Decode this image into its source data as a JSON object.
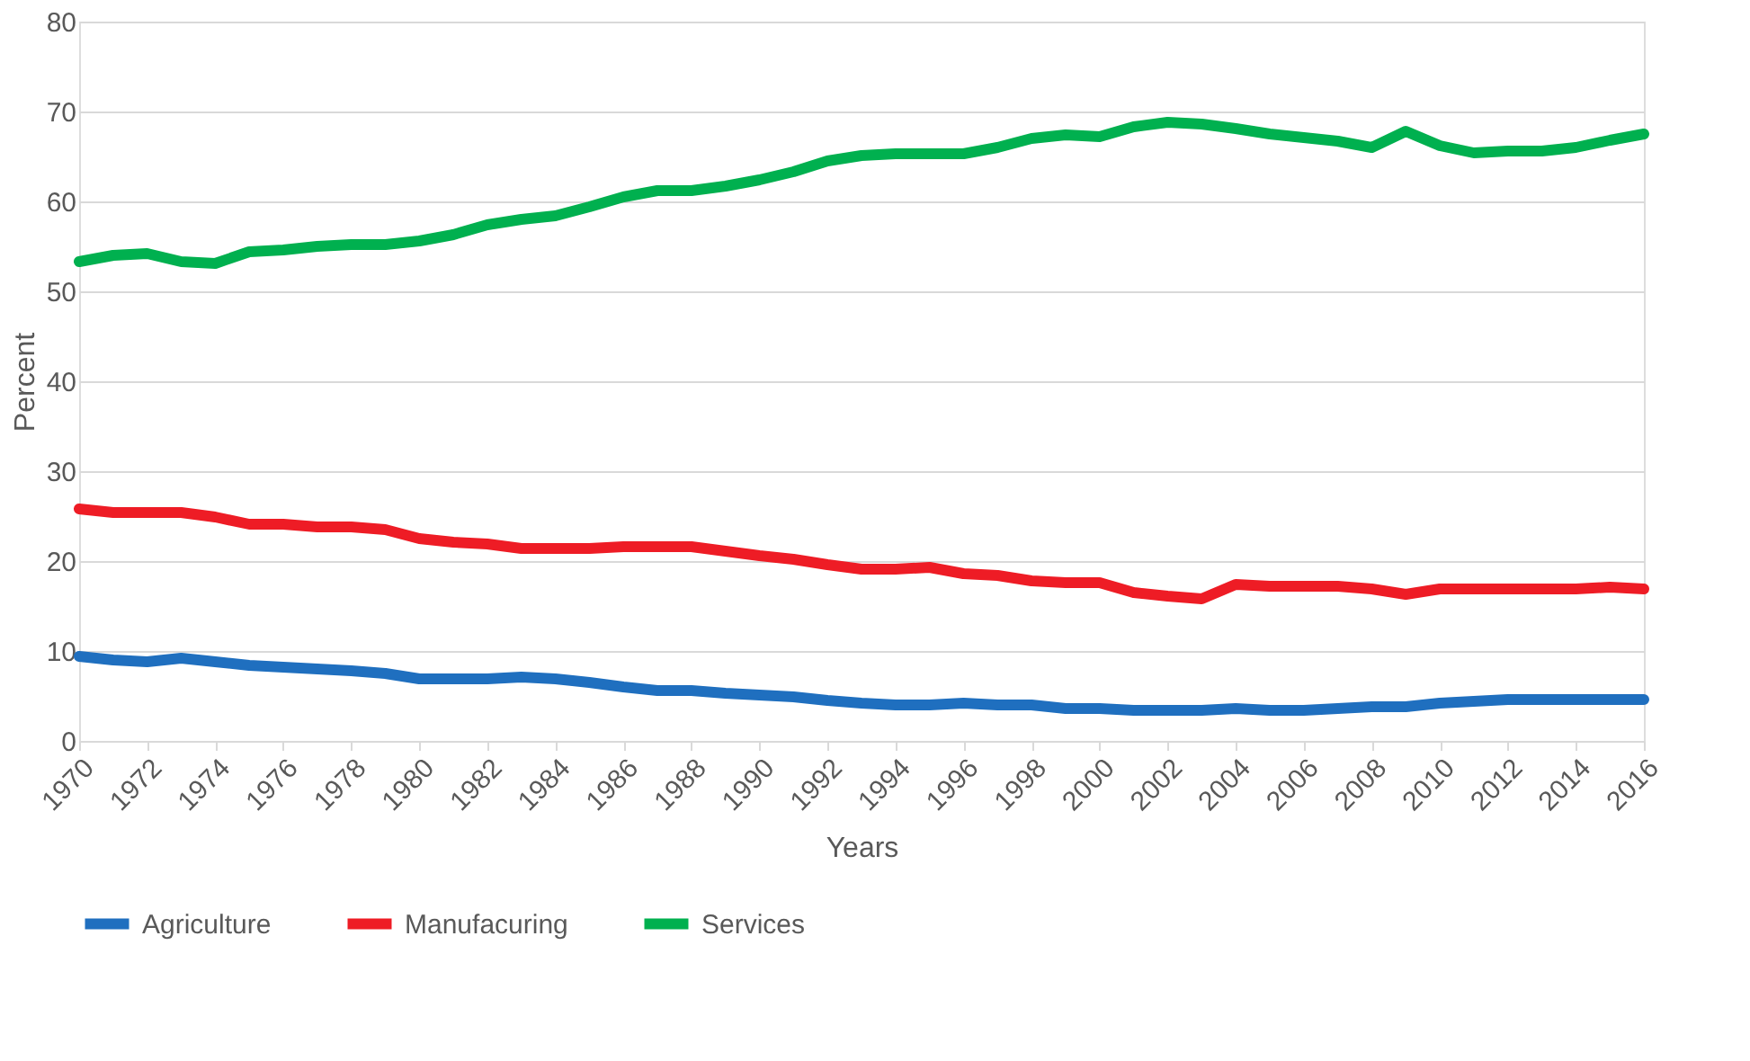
{
  "chart_data": {
    "type": "line",
    "xlabel": "Years",
    "ylabel": "Percent",
    "x": [
      1970,
      1971,
      1972,
      1973,
      1974,
      1975,
      1976,
      1977,
      1978,
      1979,
      1980,
      1981,
      1982,
      1983,
      1984,
      1985,
      1986,
      1987,
      1988,
      1989,
      1990,
      1991,
      1992,
      1993,
      1994,
      1995,
      1996,
      1997,
      1998,
      1999,
      2000,
      2001,
      2002,
      2003,
      2004,
      2005,
      2006,
      2007,
      2008,
      2009,
      2010,
      2011,
      2012,
      2013,
      2014,
      2015,
      2016
    ],
    "xlim": [
      1970,
      2016
    ],
    "xticks": [
      1970,
      1972,
      1974,
      1976,
      1978,
      1980,
      1982,
      1984,
      1986,
      1988,
      1990,
      1992,
      1994,
      1996,
      1998,
      2000,
      2002,
      2004,
      2006,
      2008,
      2010,
      2012,
      2014,
      2016
    ],
    "ylim": [
      0,
      80
    ],
    "yticks": [
      0,
      10,
      20,
      30,
      40,
      50,
      60,
      70,
      80
    ],
    "grid": "y",
    "legend": "bottom",
    "line_style": "solid",
    "marker": "none",
    "series": [
      {
        "name": "Agriculture",
        "color": "#1f6fbf",
        "values": [
          9.4,
          9.0,
          8.8,
          9.2,
          8.8,
          8.4,
          8.2,
          8.0,
          7.8,
          7.5,
          6.9,
          6.9,
          6.9,
          7.1,
          6.9,
          6.5,
          6.0,
          5.6,
          5.6,
          5.3,
          5.1,
          4.9,
          4.5,
          4.2,
          4.0,
          4.0,
          4.2,
          4.0,
          4.0,
          3.6,
          3.6,
          3.4,
          3.4,
          3.4,
          3.6,
          3.4,
          3.4,
          3.6,
          3.8,
          3.8,
          4.2,
          4.4,
          4.6,
          4.6,
          4.6,
          4.6,
          4.6
        ]
      },
      {
        "name": "Manufacuring",
        "color": "#ee1c25",
        "values": [
          25.8,
          25.4,
          25.4,
          25.4,
          24.9,
          24.1,
          24.1,
          23.8,
          23.8,
          23.5,
          22.5,
          22.1,
          21.9,
          21.4,
          21.4,
          21.4,
          21.6,
          21.6,
          21.6,
          21.1,
          20.6,
          20.2,
          19.6,
          19.1,
          19.1,
          19.3,
          18.6,
          18.4,
          17.8,
          17.6,
          17.6,
          16.5,
          16.1,
          15.8,
          17.4,
          17.2,
          17.2,
          17.2,
          16.9,
          16.3,
          16.9,
          16.9,
          16.9,
          16.9,
          16.9,
          17.1,
          16.9
        ]
      },
      {
        "name": "Services",
        "color": "#00b04f",
        "values": [
          53.3,
          54.0,
          54.2,
          53.3,
          53.1,
          54.4,
          54.6,
          55.0,
          55.2,
          55.2,
          55.6,
          56.3,
          57.4,
          58.0,
          58.4,
          59.4,
          60.5,
          61.2,
          61.2,
          61.7,
          62.4,
          63.3,
          64.5,
          65.1,
          65.3,
          65.3,
          65.3,
          66.0,
          67.0,
          67.4,
          67.2,
          68.3,
          68.8,
          68.6,
          68.1,
          67.5,
          67.1,
          66.7,
          66.0,
          67.8,
          66.2,
          65.4,
          65.6,
          65.6,
          66.0,
          66.8,
          67.5
        ]
      }
    ]
  }
}
